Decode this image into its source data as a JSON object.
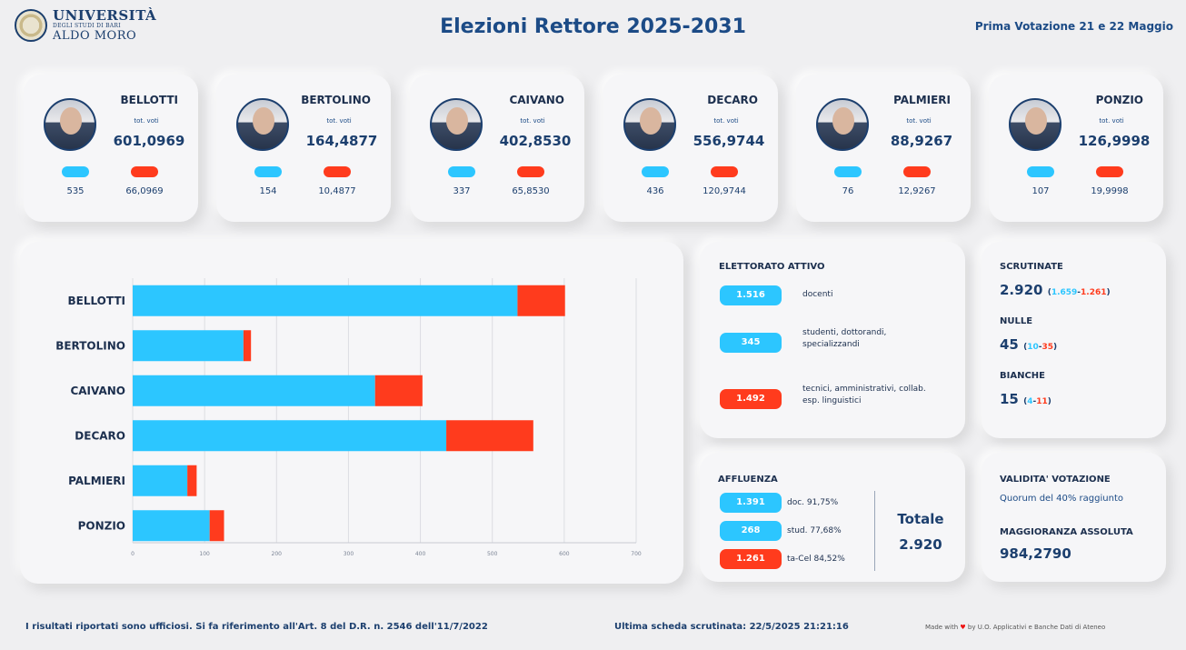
{
  "header": {
    "logo_line1": "UNIVERSITÀ",
    "logo_line2": "DEGLI STUDI DI BARI",
    "logo_line3": "ALDO MORO",
    "title": "Elezioni Rettore 2025-2031",
    "dates": "Prima Votazione 21 e 22 Maggio"
  },
  "candidates": [
    {
      "name": "BELLOTTI",
      "tot_label": "tot. voti",
      "total": "601,0969",
      "blue": "535",
      "red": "66,0969"
    },
    {
      "name": "BERTOLINO",
      "tot_label": "tot. voti",
      "total": "164,4877",
      "blue": "154",
      "red": "10,4877"
    },
    {
      "name": "CAIVANO",
      "tot_label": "tot. voti",
      "total": "402,8530",
      "blue": "337",
      "red": "65,8530"
    },
    {
      "name": "DECARO",
      "tot_label": "tot. voti",
      "total": "556,9744",
      "blue": "436",
      "red": "120,9744"
    },
    {
      "name": "PALMIERI",
      "tot_label": "tot. voti",
      "total": "88,9267",
      "blue": "76",
      "red": "12,9267"
    },
    {
      "name": "PONZIO",
      "tot_label": "tot. voti",
      "total": "126,9998",
      "blue": "107",
      "red": "19,9998"
    }
  ],
  "chart_data": {
    "type": "bar",
    "orientation": "horizontal",
    "stacked": true,
    "categories": [
      "BELLOTTI",
      "BERTOLINO",
      "CAIVANO",
      "DECARO",
      "PALMIERI",
      "PONZIO"
    ],
    "series": [
      {
        "values": [
          535,
          154,
          337,
          436,
          76,
          107
        ],
        "color": "#2cc6ff"
      },
      {
        "values": [
          66.0969,
          10.4877,
          65.853,
          120.9744,
          12.9267,
          19.9998
        ],
        "color": "#ff3b1d"
      }
    ],
    "xlim": [
      0,
      700
    ],
    "xticks": [
      "0",
      "100",
      "200",
      "300",
      "400",
      "500",
      "600",
      "700"
    ],
    "grid": true
  },
  "elettorato": {
    "title": "ELETTORATO ATTIVO",
    "rows": [
      {
        "value": "1.516",
        "label": "docenti",
        "color": "#2cc6ff"
      },
      {
        "value": "345",
        "label": "studenti, dottorandi, specializzandi",
        "color": "#2cc6ff"
      },
      {
        "value": "1.492",
        "label": "tecnici, amministrativi, collab. esp. linguistici",
        "color": "#ff3b1d"
      }
    ]
  },
  "scrutinate": {
    "title": "SCRUTINATE",
    "value": "2.920",
    "open": "(",
    "blue": "1.659",
    "dash": "-",
    "red": "1.261",
    "close": ")"
  },
  "nulle": {
    "title": "NULLE",
    "value": "45",
    "open": "(",
    "blue": "10",
    "dash": "-",
    "red": "35",
    "close": ")"
  },
  "bianche": {
    "title": "BIANCHE",
    "value": "15",
    "open": "(",
    "blue": "4",
    "dash": "-",
    "red": "11",
    "close": ")"
  },
  "affluenza": {
    "title": "AFFLUENZA",
    "rows": [
      {
        "value": "1.391",
        "label": "doc. 91,75%",
        "color": "#2cc6ff"
      },
      {
        "value": "268",
        "label": "stud. 77,68%",
        "color": "#2cc6ff"
      },
      {
        "value": "1.261",
        "label": "ta-Cel 84,52%",
        "color": "#ff3b1d"
      }
    ],
    "total_label": "Totale",
    "total_value": "2.920"
  },
  "validita": {
    "title": "VALIDITA' VOTAZIONE",
    "quorum": "Quorum del 40% raggiunto",
    "maggioranza_title": "MAGGIORANZA ASSOLUTA",
    "maggioranza_value": "984,2790"
  },
  "footer": {
    "left": "I risultati riportati sono ufficiosi. Si fa riferimento all'Art. 8 del D.R. n. 2546 dell'11/7/2022",
    "center": "Ultima scheda scrutinata: 22/5/2025 21:21:16",
    "made_with": "Made with",
    "heart": "♥",
    "right": "by U.O. Applicativi e Banche Dati di Ateneo"
  }
}
